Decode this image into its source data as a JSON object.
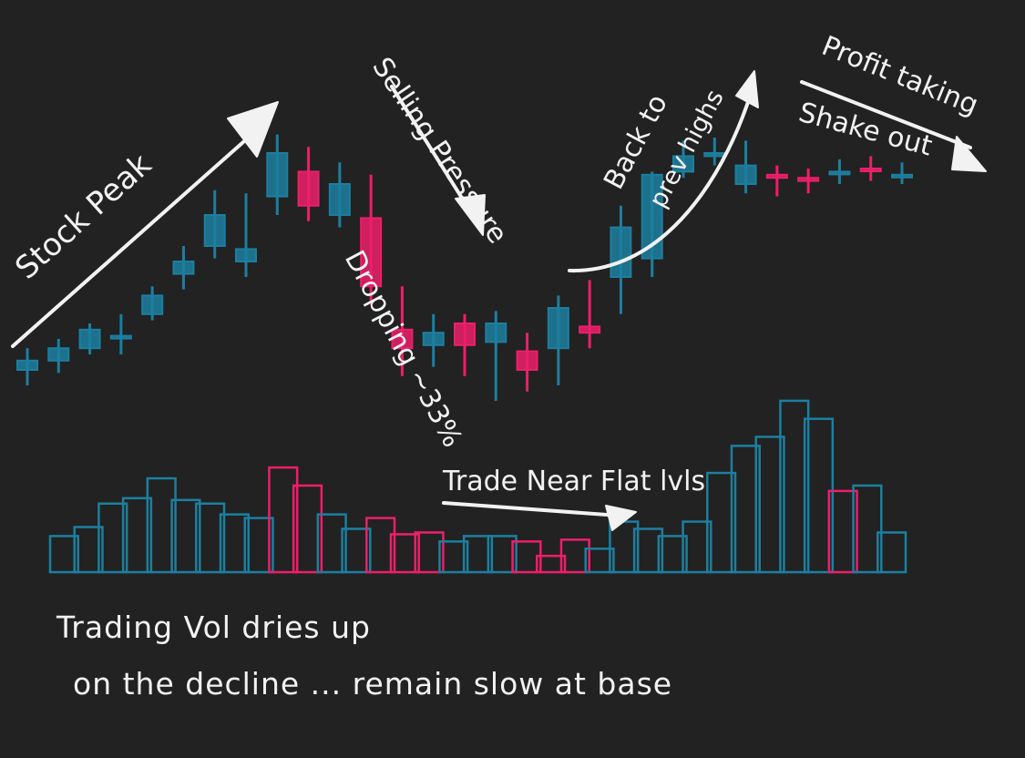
{
  "colors": {
    "background": "#222222",
    "up": "#1c7fa0",
    "down": "#ec1f6a",
    "ink": "#f2f2f2"
  },
  "annotations": {
    "stock_peak": "Stock Peak",
    "selling_pressure": "Selling Pressure",
    "dropping": "Dropping ~33%",
    "back_to": "Back to",
    "prev_highs": "prev highs",
    "profit_taking": "Profit taking",
    "shake_out": "Shake out",
    "trade_near_flat": "Trade Near Flat lvls",
    "caption_line1": "Trading Vol dries up",
    "caption_line2": "on the decline ... remain slow at base"
  },
  "chart_data": [
    {
      "type": "candlestick",
      "title": "",
      "xlabel": "",
      "ylabel": "",
      "ylim": [
        0,
        100
      ],
      "grid": false,
      "candles": [
        {
          "o": 10,
          "c": 13,
          "h": 17,
          "l": 5,
          "color": "up"
        },
        {
          "o": 13,
          "c": 17,
          "h": 20,
          "l": 9,
          "color": "up"
        },
        {
          "o": 17,
          "c": 23,
          "h": 25,
          "l": 15,
          "color": "up"
        },
        {
          "o": 21,
          "c": 21,
          "h": 28,
          "l": 15,
          "color": "up"
        },
        {
          "o": 28,
          "c": 34,
          "h": 37,
          "l": 26,
          "color": "up"
        },
        {
          "o": 41,
          "c": 45,
          "h": 50,
          "l": 36,
          "color": "up"
        },
        {
          "o": 50,
          "c": 60,
          "h": 68,
          "l": 46,
          "color": "up"
        },
        {
          "o": 45,
          "c": 49,
          "h": 67,
          "l": 40,
          "color": "up"
        },
        {
          "o": 66,
          "c": 80,
          "h": 86,
          "l": 60,
          "color": "up"
        },
        {
          "o": 74,
          "c": 63,
          "h": 82,
          "l": 58,
          "color": "down"
        },
        {
          "o": 60,
          "c": 70,
          "h": 77,
          "l": 56,
          "color": "up"
        },
        {
          "o": 59,
          "c": 37,
          "h": 73,
          "l": 31,
          "color": "down"
        },
        {
          "o": 23,
          "c": 17,
          "h": 37,
          "l": 8,
          "color": "down"
        },
        {
          "o": 18,
          "c": 22,
          "h": 28,
          "l": 11,
          "color": "up"
        },
        {
          "o": 25,
          "c": 18,
          "h": 28,
          "l": 8,
          "color": "down"
        },
        {
          "o": 19,
          "c": 25,
          "h": 29,
          "l": 0,
          "color": "up"
        },
        {
          "o": 16,
          "c": 10,
          "h": 22,
          "l": 3,
          "color": "down"
        },
        {
          "o": 17,
          "c": 30,
          "h": 34,
          "l": 5,
          "color": "up"
        },
        {
          "o": 24,
          "c": 22,
          "h": 39,
          "l": 17,
          "color": "down"
        },
        {
          "o": 40,
          "c": 56,
          "h": 63,
          "l": 28,
          "color": "up"
        },
        {
          "o": 46,
          "c": 73,
          "h": 74,
          "l": 40,
          "color": "up"
        },
        {
          "o": 74,
          "c": 79,
          "h": 84,
          "l": 72,
          "color": "up"
        },
        {
          "o": 79,
          "c": 80,
          "h": 85,
          "l": 76,
          "color": "up"
        },
        {
          "o": 76,
          "c": 70,
          "h": 84,
          "l": 67,
          "color": "up"
        },
        {
          "o": 73,
          "c": 72,
          "h": 76,
          "l": 66,
          "color": "down"
        },
        {
          "o": 72,
          "c": 71,
          "h": 75,
          "l": 67,
          "color": "down"
        },
        {
          "o": 74,
          "c": 74,
          "h": 78,
          "l": 70,
          "color": "up"
        },
        {
          "o": 75,
          "c": 75,
          "h": 79,
          "l": 71,
          "color": "down"
        },
        {
          "o": 73,
          "c": 73,
          "h": 77,
          "l": 70,
          "color": "up"
        }
      ]
    },
    {
      "type": "bar",
      "title": "",
      "xlabel": "",
      "ylabel": "",
      "ylim": [
        0,
        100
      ],
      "grid": false,
      "values": [
        20,
        25,
        38,
        41,
        52,
        40,
        38,
        32,
        30,
        58,
        48,
        32,
        24,
        30,
        21,
        22,
        17,
        20,
        20,
        17,
        9,
        18,
        13,
        28,
        24,
        20,
        28,
        55,
        70,
        75,
        95,
        85,
        45,
        48,
        22
      ],
      "colors": [
        "up",
        "up",
        "up",
        "up",
        "up",
        "up",
        "up",
        "up",
        "up",
        "down",
        "down",
        "up",
        "up",
        "down",
        "down",
        "down",
        "up",
        "up",
        "up",
        "down",
        "down",
        "down",
        "up",
        "up",
        "up",
        "up",
        "up",
        "up",
        "up",
        "up",
        "up",
        "up",
        "down",
        "up",
        "up"
      ]
    }
  ]
}
